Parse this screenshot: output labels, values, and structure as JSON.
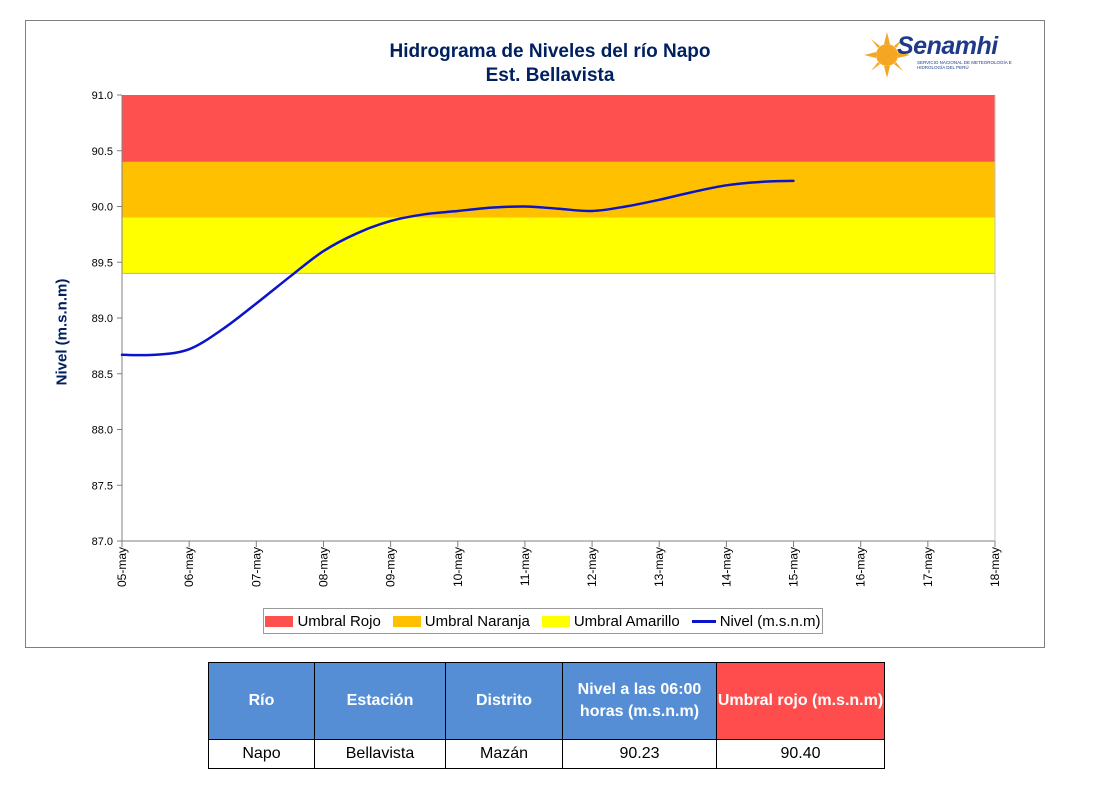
{
  "chart_data": {
    "type": "line",
    "title": "Hidrograma de Niveles del río Napo",
    "subtitle": "Est. Bellavista",
    "ylabel": "Nivel (m.s.n.m)",
    "xlabel": "",
    "ylim": [
      87.0,
      91.0
    ],
    "yticks": [
      "87.0",
      "87.5",
      "88.0",
      "88.5",
      "89.0",
      "89.5",
      "90.0",
      "90.5",
      "91.0"
    ],
    "x_categories": [
      "05-may",
      "06-may",
      "07-may",
      "08-may",
      "09-may",
      "10-may",
      "11-may",
      "12-may",
      "13-may",
      "14-may",
      "15-may",
      "16-may",
      "17-may",
      "18-may"
    ],
    "thresholds": [
      {
        "name": "Umbral Rojo",
        "from": 90.4,
        "to": 91.0,
        "color": "#ff5050"
      },
      {
        "name": "Umbral Naranja",
        "from": 89.9,
        "to": 90.4,
        "color": "#ffc000"
      },
      {
        "name": "Umbral Amarillo",
        "from": 89.4,
        "to": 89.9,
        "color": "#ffff00"
      }
    ],
    "series": [
      {
        "name": "Nivel (m.s.n.m)",
        "color": "#0a14c8",
        "points": [
          {
            "x": 0.0,
            "y": 88.67
          },
          {
            "x": 0.5,
            "y": 88.67
          },
          {
            "x": 1.0,
            "y": 88.72
          },
          {
            "x": 1.5,
            "y": 88.9
          },
          {
            "x": 2.0,
            "y": 89.13
          },
          {
            "x": 2.5,
            "y": 89.37
          },
          {
            "x": 3.0,
            "y": 89.6
          },
          {
            "x": 3.5,
            "y": 89.76
          },
          {
            "x": 4.0,
            "y": 89.87
          },
          {
            "x": 4.5,
            "y": 89.93
          },
          {
            "x": 5.0,
            "y": 89.96
          },
          {
            "x": 5.5,
            "y": 89.99
          },
          {
            "x": 6.0,
            "y": 90.0
          },
          {
            "x": 6.5,
            "y": 89.98
          },
          {
            "x": 7.0,
            "y": 89.96
          },
          {
            "x": 7.5,
            "y": 90.0
          },
          {
            "x": 8.0,
            "y": 90.06
          },
          {
            "x": 8.5,
            "y": 90.13
          },
          {
            "x": 9.0,
            "y": 90.19
          },
          {
            "x": 9.5,
            "y": 90.22
          },
          {
            "x": 10.0,
            "y": 90.23
          }
        ]
      }
    ],
    "legend": [
      "Umbral Rojo",
      "Umbral Naranja",
      "Umbral Amarillo",
      "Nivel (m.s.n.m)"
    ],
    "legend_position": "bottom",
    "grid": false
  },
  "logo": {
    "name": "Senamhi",
    "tagline": "SERVICIO NACIONAL DE METEOROLOGÍA E HIDROLOGÍA DEL PERÚ"
  },
  "table": {
    "headers": [
      "Río",
      "Estación",
      "Distrito",
      "Nivel a las 06:00 horas (m.s.n.m)",
      "Umbral rojo (m.s.n.m)"
    ],
    "row": [
      "Napo",
      "Bellavista",
      "Mazán",
      "90.23",
      "90.40"
    ]
  }
}
